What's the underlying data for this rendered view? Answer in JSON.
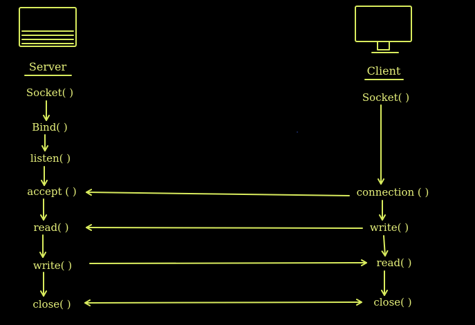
{
  "colors": {
    "background": "#000000",
    "ink": "#d9ec5e",
    "text": "#e4ee7a"
  },
  "server": {
    "heading": "Server",
    "icon": "server-icon",
    "steps": {
      "socket": "Socket( )",
      "bind": "Bind( )",
      "listen": "listen( )",
      "accept": "accept ( )",
      "read": "read( )",
      "write": "write( )",
      "close": "close( )"
    }
  },
  "client": {
    "heading": "Client",
    "icon": "monitor-icon",
    "steps": {
      "socket": "Socket( )",
      "connection": "connection ( )",
      "write": "write( )",
      "read": "read( )",
      "close": "close( )"
    }
  }
}
